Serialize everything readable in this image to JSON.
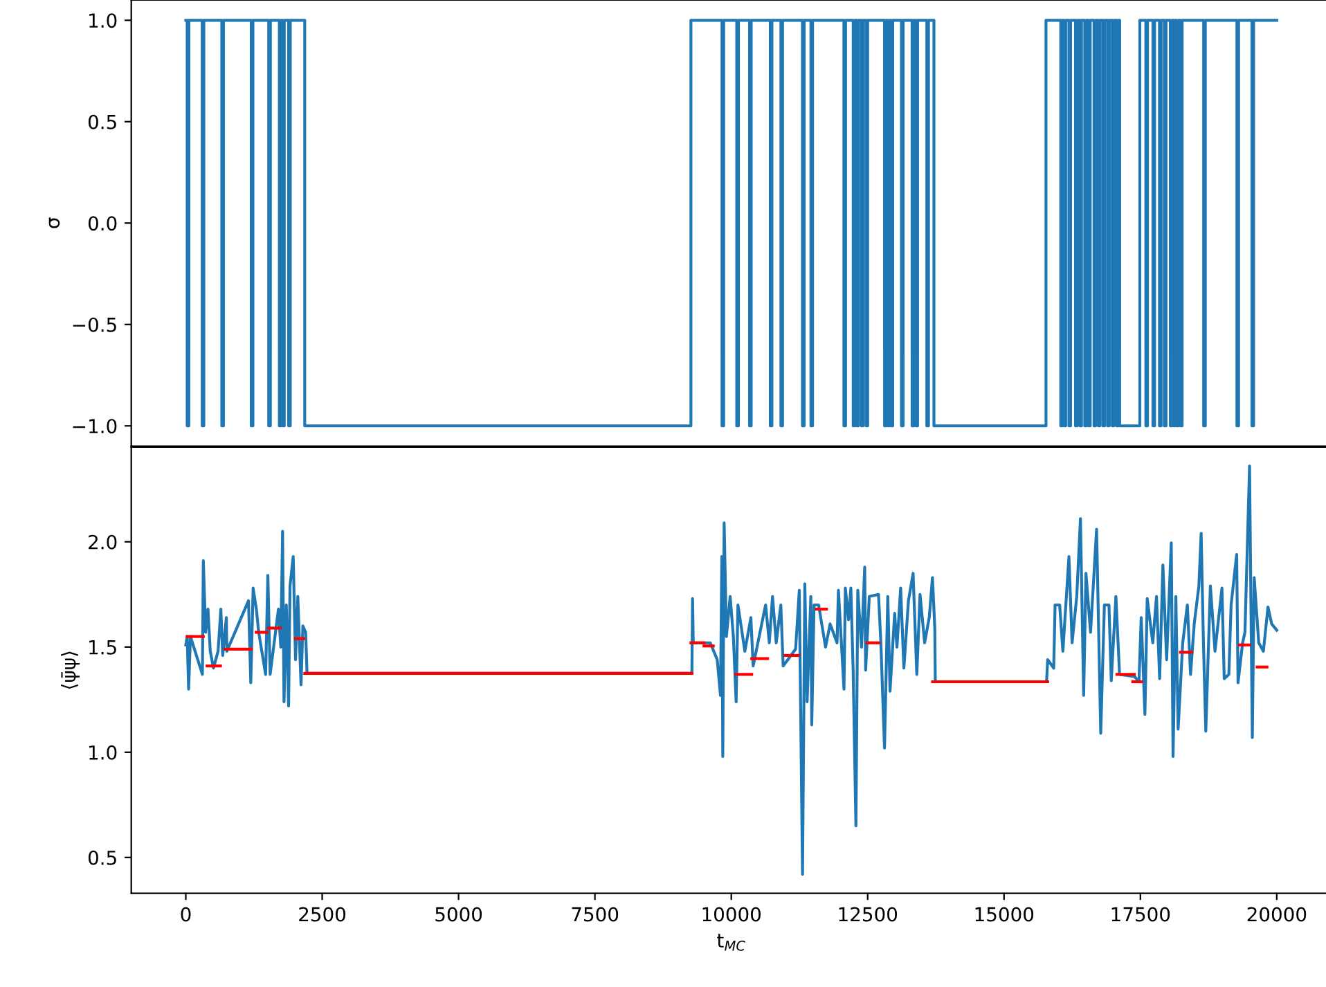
{
  "chart_data": [
    {
      "type": "step",
      "ylabel": "σ",
      "xlim": [
        -1000,
        21000
      ],
      "ylim": [
        -1.1,
        1.1
      ],
      "yticks": [
        {
          "value": -1,
          "label": "−1.0"
        },
        {
          "value": -0.5,
          "label": "−0.5"
        },
        {
          "value": 0,
          "label": "0.0"
        },
        {
          "value": 0.5,
          "label": "0.5"
        },
        {
          "value": 1,
          "label": "1.0"
        }
      ],
      "tick_labels": "y",
      "grid": false,
      "series": [
        {
          "color": "#1f77b4",
          "x": [
            0,
            25,
            55,
            300,
            330,
            660,
            690,
            1200,
            1230,
            1520,
            1550,
            1715,
            1745,
            1775,
            1805,
            1885,
            1915,
            2180,
            9260,
            9830,
            9860,
            10100,
            10130,
            10335,
            10365,
            10715,
            10745,
            10910,
            10940,
            11305,
            11335,
            11460,
            11490,
            12065,
            12095,
            12235,
            12265,
            12300,
            12330,
            12385,
            12415,
            12470,
            12500,
            12810,
            12840,
            12870,
            12900,
            12930,
            12960,
            13120,
            13150,
            13315,
            13345,
            13385,
            13415,
            13585,
            13615,
            13715,
            15770,
            16040,
            16070,
            16100,
            16130,
            16190,
            16220,
            16310,
            16340,
            16390,
            16420,
            16480,
            16510,
            16550,
            16580,
            16650,
            16680,
            16730,
            16760,
            16815,
            16845,
            16900,
            16930,
            16985,
            17015,
            17065,
            17095,
            17120,
            17490,
            17600,
            17630,
            17730,
            17760,
            17850,
            17880,
            17940,
            17970,
            18050,
            18080,
            18110,
            18140,
            18170,
            18200,
            18235,
            18265,
            18660,
            18690,
            19270,
            19300,
            19545,
            19575,
            20000
          ],
          "values": [
            1,
            -1,
            1,
            -1,
            1,
            -1,
            1,
            -1,
            1,
            -1,
            1,
            -1,
            1,
            -1,
            1,
            -1,
            1,
            -1,
            1,
            -1,
            1,
            -1,
            1,
            -1,
            1,
            -1,
            1,
            -1,
            1,
            -1,
            1,
            -1,
            1,
            -1,
            1,
            -1,
            1,
            -1,
            1,
            -1,
            1,
            -1,
            1,
            -1,
            1,
            -1,
            1,
            -1,
            1,
            -1,
            1,
            -1,
            1,
            -1,
            1,
            -1,
            1,
            -1,
            1,
            -1,
            1,
            -1,
            1,
            -1,
            1,
            -1,
            1,
            -1,
            1,
            -1,
            1,
            -1,
            1,
            -1,
            1,
            -1,
            1,
            -1,
            1,
            -1,
            1,
            -1,
            1,
            -1,
            1,
            -1,
            1,
            -1,
            1,
            -1,
            1,
            -1,
            1,
            -1,
            1,
            -1,
            1,
            -1,
            1,
            -1,
            1,
            -1,
            1,
            -1,
            1,
            -1,
            1,
            -1,
            1,
            1
          ]
        }
      ]
    },
    {
      "type": "line",
      "ylabel": "⟨ψ̄ψ⟩",
      "xlabel": "t$_{MC}$",
      "xlim": [
        -1000,
        21000
      ],
      "ylim": [
        0.33,
        2.45
      ],
      "xticks": [
        0,
        2500,
        5000,
        7500,
        10000,
        12500,
        15000,
        17500,
        20000
      ],
      "yticks": [
        0.5,
        {
          "value": 1,
          "label": "1.0"
        },
        1.5,
        {
          "value": 2,
          "label": "2.0"
        }
      ],
      "grid": false,
      "series": [
        {
          "type": "line",
          "color": "#1f77b4",
          "x": [
            0,
            25,
            51,
            85,
            304,
            321,
            363,
            406,
            448,
            507,
            591,
            642,
            676,
            743,
            752,
            1149,
            1191,
            1234,
            1293,
            1336,
            1463,
            1504,
            1546,
            1698,
            1741,
            1774,
            1800,
            1842,
            1884,
            1910,
            1969,
            2011,
            2053,
            2112,
            2146,
            2197,
            2222,
            9278,
            9290,
            9303,
            9615,
            9742,
            9802,
            9827,
            9844,
            9869,
            9911,
            9979,
            10038,
            10089,
            10122,
            10249,
            10359,
            10401,
            10629,
            10697,
            10756,
            10824,
            10908,
            10951,
            11179,
            11247,
            11306,
            11348,
            11390,
            11458,
            11475,
            11517,
            11601,
            11728,
            11812,
            11939,
            11964,
            12066,
            12091,
            12150,
            12192,
            12234,
            12285,
            12319,
            12387,
            12446,
            12463,
            12530,
            12699,
            12742,
            12809,
            12869,
            12910,
            12995,
            13037,
            13105,
            13164,
            13248,
            13333,
            13401,
            13460,
            13545,
            13629,
            13688,
            13731,
            13740,
            15780,
            15800,
            15911,
            15936,
            16020,
            16079,
            16190,
            16248,
            16333,
            16401,
            16460,
            16502,
            16586,
            16697,
            16773,
            16840,
            16924,
            16966,
            17051,
            17118,
            17390,
            17474,
            17515,
            17583,
            17625,
            17727,
            17795,
            17853,
            17913,
            17981,
            18066,
            18099,
            18150,
            18192,
            18276,
            18361,
            18420,
            18487,
            18572,
            18614,
            18656,
            18699,
            18783,
            18868,
            18995,
            19037,
            19122,
            19163,
            19265,
            19290,
            19374,
            19417,
            19501,
            19552,
            19586,
            19670,
            19755,
            19839,
            19907,
            20000
          ],
          "values": [
            1.51,
            1.55,
            1.3,
            1.55,
            1.37,
            1.91,
            1.57,
            1.68,
            1.48,
            1.4,
            1.48,
            1.68,
            1.46,
            1.64,
            1.48,
            1.72,
            1.33,
            1.78,
            1.68,
            1.57,
            1.37,
            1.84,
            1.37,
            1.68,
            1.5,
            2.05,
            1.24,
            1.7,
            1.22,
            1.79,
            1.93,
            1.44,
            1.74,
            1.32,
            1.6,
            1.57,
            1.375,
            1.375,
            1.73,
            1.52,
            1.52,
            1.44,
            1.27,
            1.93,
            0.98,
            2.09,
            1.55,
            1.74,
            1.55,
            1.24,
            1.7,
            1.48,
            1.64,
            1.41,
            1.7,
            1.52,
            1.74,
            1.52,
            1.7,
            1.41,
            1.49,
            1.77,
            0.42,
            1.8,
            1.24,
            1.74,
            1.13,
            1.7,
            1.7,
            1.5,
            1.61,
            1.52,
            1.77,
            1.3,
            1.78,
            1.63,
            1.78,
            1.39,
            0.65,
            1.77,
            1.5,
            1.88,
            1.39,
            1.74,
            1.75,
            1.52,
            1.02,
            1.74,
            1.29,
            1.66,
            1.5,
            1.78,
            1.4,
            1.72,
            1.85,
            1.37,
            1.75,
            1.52,
            1.64,
            1.83,
            1.59,
            1.335,
            1.335,
            1.44,
            1.4,
            1.7,
            1.7,
            1.48,
            1.93,
            1.52,
            1.74,
            2.11,
            1.27,
            1.85,
            1.57,
            2.06,
            1.09,
            1.7,
            1.7,
            1.34,
            1.74,
            1.37,
            1.36,
            1.335,
            1.64,
            1.18,
            1.73,
            1.52,
            1.74,
            1.35,
            1.89,
            1.44,
            1.995,
            0.98,
            1.74,
            1.11,
            1.52,
            1.7,
            1.37,
            1.61,
            1.79,
            2.04,
            1.52,
            1.1,
            1.79,
            1.48,
            1.78,
            1.35,
            1.37,
            1.7,
            1.94,
            1.33,
            1.52,
            1.57,
            2.36,
            1.07,
            1.83,
            1.52,
            1.48,
            1.69,
            1.61,
            1.58
          ]
        },
        {
          "type": "line",
          "color": "#ff0000",
          "x": [
            25,
            320
          ],
          "values": [
            1.55,
            1.55
          ]
        },
        {
          "type": "line",
          "color": "#ff0000",
          "x": [
            390,
            635
          ],
          "values": [
            1.41,
            1.41
          ]
        },
        {
          "type": "line",
          "color": "#ff0000",
          "x": [
            720,
            1200
          ],
          "values": [
            1.49,
            1.49
          ]
        },
        {
          "type": "line",
          "color": "#ff0000",
          "x": [
            1290,
            1490
          ],
          "values": [
            1.57,
            1.57
          ]
        },
        {
          "type": "line",
          "color": "#ff0000",
          "x": [
            1520,
            1730
          ],
          "values": [
            1.59,
            1.59
          ]
        },
        {
          "type": "line",
          "color": "#ff0000",
          "x": [
            2010,
            2160
          ],
          "values": [
            1.54,
            1.54
          ]
        },
        {
          "type": "line",
          "color": "#ff0000",
          "x": [
            2180,
            9280
          ],
          "values": [
            1.375,
            1.375
          ]
        },
        {
          "type": "line",
          "color": "#ff0000",
          "x": [
            9260,
            9500
          ],
          "values": [
            1.52,
            1.52
          ]
        },
        {
          "type": "line",
          "color": "#ff0000",
          "x": [
            9500,
            9670
          ],
          "values": [
            1.505,
            1.505
          ]
        },
        {
          "type": "line",
          "color": "#ff0000",
          "x": [
            10080,
            10375
          ],
          "values": [
            1.37,
            1.37
          ]
        },
        {
          "type": "line",
          "color": "#ff0000",
          "x": [
            10375,
            10665
          ],
          "values": [
            1.445,
            1.445
          ]
        },
        {
          "type": "line",
          "color": "#ff0000",
          "x": [
            10985,
            11240
          ],
          "values": [
            1.46,
            1.46
          ]
        },
        {
          "type": "line",
          "color": "#ff0000",
          "x": [
            11560,
            11745
          ],
          "values": [
            1.68,
            1.68
          ]
        },
        {
          "type": "line",
          "color": "#ff0000",
          "x": [
            12490,
            12710
          ],
          "values": [
            1.52,
            1.52
          ]
        },
        {
          "type": "line",
          "color": "#ff0000",
          "x": [
            13690,
            15800
          ],
          "values": [
            1.335,
            1.335
          ]
        },
        {
          "type": "line",
          "color": "#ff0000",
          "x": [
            17070,
            17390
          ],
          "values": [
            1.37,
            1.37
          ]
        },
        {
          "type": "line",
          "color": "#ff0000",
          "x": [
            17360,
            17520
          ],
          "values": [
            1.335,
            1.335
          ]
        },
        {
          "type": "line",
          "color": "#ff0000",
          "x": [
            18235,
            18440
          ],
          "values": [
            1.475,
            1.475
          ]
        },
        {
          "type": "line",
          "color": "#ff0000",
          "x": [
            19315,
            19500
          ],
          "values": [
            1.51,
            1.51
          ]
        },
        {
          "type": "line",
          "color": "#ff0000",
          "x": [
            19640,
            19820
          ],
          "values": [
            1.405,
            1.405
          ]
        }
      ]
    }
  ]
}
